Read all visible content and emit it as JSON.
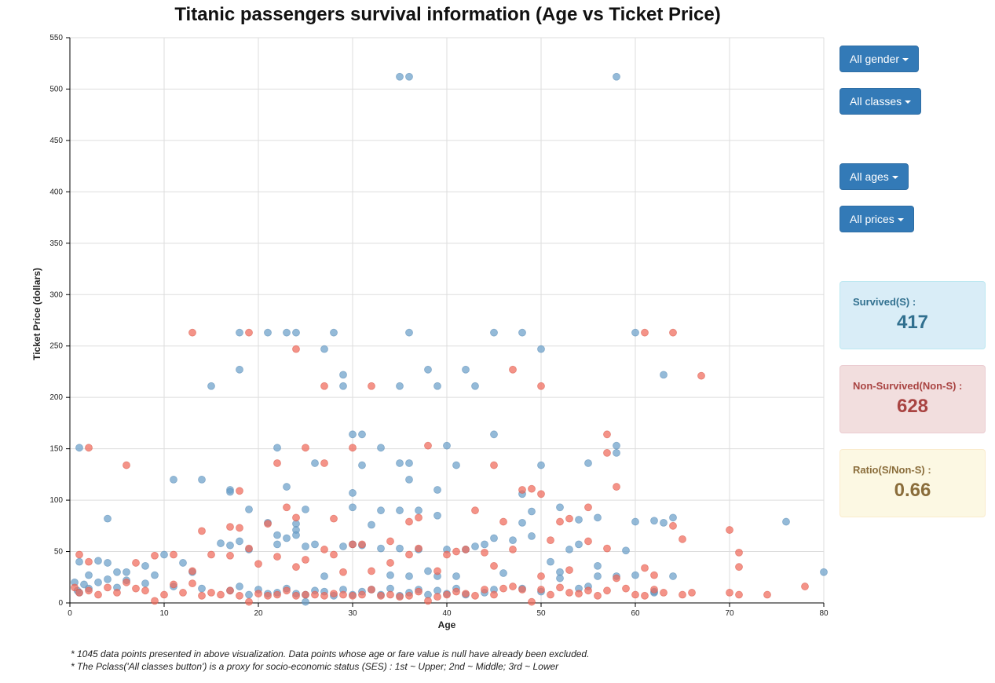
{
  "title": "Titanic passengers survival information (Age vs Ticket Price)",
  "filters": {
    "gender": "All gender",
    "classes": "All classes",
    "ages": "All ages",
    "prices": "All prices"
  },
  "stats": {
    "survived_label": "Survived(S) :",
    "survived_value": "417",
    "nonsurvived_label": "Non-Survived(Non-S) :",
    "nonsurvived_value": "628",
    "ratio_label": "Ratio(S/Non-S) :",
    "ratio_value": "0.66"
  },
  "notes": [
    "* 1045 data points presented in above visualization. Data points whose age or fare value is null have already been excluded.",
    "* The Pclass('All classes button') is a proxy for socio-economic status (SES) : 1st ~ Upper; 2nd ~ Middle; 3rd ~ Lower"
  ],
  "colors": {
    "survived": "#6b9fc9",
    "non_survived": "#f06a5a",
    "button": "#337ab7"
  },
  "chart_data": {
    "type": "scatter",
    "title": "Titanic passengers survival information (Age vs Ticket Price)",
    "xlabel": "Age",
    "ylabel": "Ticket Price (dollars)",
    "xlim": [
      0,
      80
    ],
    "ylim": [
      0,
      550
    ],
    "xticks": [
      0,
      10,
      20,
      30,
      40,
      50,
      60,
      70,
      80
    ],
    "yticks": [
      0,
      50,
      100,
      150,
      200,
      250,
      300,
      350,
      400,
      450,
      500,
      550
    ],
    "grid": true,
    "series": [
      {
        "key": "survived",
        "points": [
          [
            35,
            512
          ],
          [
            36,
            512
          ],
          [
            58,
            512
          ],
          [
            18,
            263
          ],
          [
            21,
            263
          ],
          [
            23,
            263
          ],
          [
            24,
            263
          ],
          [
            28,
            263
          ],
          [
            36,
            263
          ],
          [
            45,
            263
          ],
          [
            48,
            263
          ],
          [
            60,
            263
          ],
          [
            18,
            227
          ],
          [
            29,
            222
          ],
          [
            38,
            227
          ],
          [
            42,
            227
          ],
          [
            63,
            222
          ],
          [
            15,
            211
          ],
          [
            27,
            247
          ],
          [
            29,
            211
          ],
          [
            35,
            211
          ],
          [
            39,
            211
          ],
          [
            43,
            211
          ],
          [
            50,
            247
          ],
          [
            1,
            151
          ],
          [
            22,
            151
          ],
          [
            30,
            164
          ],
          [
            31,
            164
          ],
          [
            33,
            151
          ],
          [
            40,
            153
          ],
          [
            45,
            164
          ],
          [
            58,
            153
          ],
          [
            58,
            146
          ],
          [
            11,
            120
          ],
          [
            14,
            120
          ],
          [
            23,
            113
          ],
          [
            26,
            136
          ],
          [
            31,
            134
          ],
          [
            35,
            136
          ],
          [
            36,
            120
          ],
          [
            36,
            136
          ],
          [
            39,
            110
          ],
          [
            41,
            134
          ],
          [
            50,
            134
          ],
          [
            55,
            136
          ],
          [
            4,
            82
          ],
          [
            17,
            110
          ],
          [
            17,
            108
          ],
          [
            19,
            91
          ],
          [
            21,
            78
          ],
          [
            24,
            77
          ],
          [
            30,
            107
          ],
          [
            30,
            93
          ],
          [
            33,
            90
          ],
          [
            35,
            90
          ],
          [
            37,
            90
          ],
          [
            39,
            85
          ],
          [
            48,
            106
          ],
          [
            49,
            89
          ],
          [
            52,
            93
          ],
          [
            54,
            81
          ],
          [
            56,
            83
          ],
          [
            60,
            79
          ],
          [
            62,
            80
          ],
          [
            63,
            78
          ],
          [
            64,
            83
          ],
          [
            76,
            79
          ],
          [
            1,
            40
          ],
          [
            2,
            27
          ],
          [
            3,
            41
          ],
          [
            4,
            39
          ],
          [
            5,
            30
          ],
          [
            6,
            30
          ],
          [
            8,
            36
          ],
          [
            10,
            47
          ],
          [
            12,
            39
          ],
          [
            13,
            30
          ],
          [
            16,
            58
          ],
          [
            17,
            56
          ],
          [
            18,
            60
          ],
          [
            19,
            52
          ],
          [
            22,
            66
          ],
          [
            22,
            57
          ],
          [
            23,
            63
          ],
          [
            24,
            71
          ],
          [
            24,
            66
          ],
          [
            25,
            91
          ],
          [
            25,
            55
          ],
          [
            26,
            57
          ],
          [
            27,
            26
          ],
          [
            29,
            55
          ],
          [
            30,
            57
          ],
          [
            31,
            56
          ],
          [
            32,
            76
          ],
          [
            33,
            53
          ],
          [
            34,
            27
          ],
          [
            35,
            53
          ],
          [
            36,
            26
          ],
          [
            37,
            52
          ],
          [
            38,
            31
          ],
          [
            39,
            26
          ],
          [
            40,
            52
          ],
          [
            41,
            26
          ],
          [
            42,
            52
          ],
          [
            43,
            55
          ],
          [
            44,
            57
          ],
          [
            45,
            63
          ],
          [
            46,
            29
          ],
          [
            47,
            61
          ],
          [
            48,
            78
          ],
          [
            49,
            65
          ],
          [
            51,
            40
          ],
          [
            52,
            30
          ],
          [
            53,
            52
          ],
          [
            54,
            57
          ],
          [
            55,
            16
          ],
          [
            56,
            36
          ],
          [
            58,
            26
          ],
          [
            59,
            51
          ],
          [
            62,
            10
          ],
          [
            64,
            26
          ],
          [
            80,
            30
          ],
          [
            0.5,
            20
          ],
          [
            0.8,
            12
          ],
          [
            1,
            10
          ],
          [
            1.5,
            18
          ],
          [
            2,
            14
          ],
          [
            3,
            20
          ],
          [
            4,
            23
          ],
          [
            5,
            15
          ],
          [
            6,
            22
          ],
          [
            8,
            19
          ],
          [
            9,
            27
          ],
          [
            11,
            16
          ],
          [
            14,
            14
          ],
          [
            17,
            12
          ],
          [
            18,
            16
          ],
          [
            19,
            8
          ],
          [
            20,
            13
          ],
          [
            21,
            9
          ],
          [
            22,
            10
          ],
          [
            23,
            14
          ],
          [
            24,
            9
          ],
          [
            25,
            8
          ],
          [
            26,
            12
          ],
          [
            27,
            11
          ],
          [
            28,
            7
          ],
          [
            29,
            13
          ],
          [
            30,
            8
          ],
          [
            31,
            11
          ],
          [
            32,
            13
          ],
          [
            33,
            8
          ],
          [
            34,
            14
          ],
          [
            35,
            7
          ],
          [
            36,
            10
          ],
          [
            37,
            13
          ],
          [
            38,
            8
          ],
          [
            39,
            12
          ],
          [
            40,
            9
          ],
          [
            41,
            14
          ],
          [
            42,
            8
          ],
          [
            44,
            10
          ],
          [
            45,
            13
          ],
          [
            48,
            14
          ],
          [
            50,
            11
          ],
          [
            52,
            24
          ],
          [
            54,
            14
          ],
          [
            56,
            26
          ],
          [
            60,
            27
          ],
          [
            62,
            11
          ],
          [
            25,
            1
          ]
        ]
      },
      {
        "key": "non_survived",
        "points": [
          [
            13,
            263
          ],
          [
            19,
            263
          ],
          [
            61,
            263
          ],
          [
            64,
            263
          ],
          [
            24,
            247
          ],
          [
            27,
            211
          ],
          [
            32,
            211
          ],
          [
            47,
            227
          ],
          [
            50,
            211
          ],
          [
            67,
            221
          ],
          [
            2,
            151
          ],
          [
            25,
            151
          ],
          [
            30,
            151
          ],
          [
            38,
            153
          ],
          [
            57,
            164
          ],
          [
            57,
            146
          ],
          [
            6,
            134
          ],
          [
            22,
            136
          ],
          [
            27,
            136
          ],
          [
            45,
            134
          ],
          [
            58,
            113
          ],
          [
            18,
            109
          ],
          [
            14,
            70
          ],
          [
            17,
            74
          ],
          [
            18,
            73
          ],
          [
            21,
            77
          ],
          [
            23,
            93
          ],
          [
            24,
            83
          ],
          [
            28,
            82
          ],
          [
            31,
            57
          ],
          [
            34,
            60
          ],
          [
            36,
            79
          ],
          [
            37,
            83
          ],
          [
            43,
            90
          ],
          [
            46,
            79
          ],
          [
            48,
            110
          ],
          [
            49,
            111
          ],
          [
            50,
            106
          ],
          [
            52,
            79
          ],
          [
            53,
            82
          ],
          [
            55,
            93
          ],
          [
            64,
            75
          ],
          [
            65,
            62
          ],
          [
            70,
            71
          ],
          [
            71,
            49
          ],
          [
            71,
            35
          ],
          [
            1,
            47
          ],
          [
            2,
            40
          ],
          [
            7,
            39
          ],
          [
            9,
            46
          ],
          [
            11,
            47
          ],
          [
            13,
            31
          ],
          [
            15,
            47
          ],
          [
            17,
            46
          ],
          [
            19,
            53
          ],
          [
            20,
            38
          ],
          [
            22,
            45
          ],
          [
            24,
            35
          ],
          [
            25,
            42
          ],
          [
            27,
            52
          ],
          [
            28,
            47
          ],
          [
            29,
            30
          ],
          [
            30,
            57
          ],
          [
            32,
            31
          ],
          [
            34,
            39
          ],
          [
            36,
            47
          ],
          [
            37,
            53
          ],
          [
            39,
            31
          ],
          [
            40,
            47
          ],
          [
            41,
            50
          ],
          [
            42,
            52
          ],
          [
            44,
            49
          ],
          [
            45,
            36
          ],
          [
            47,
            52
          ],
          [
            50,
            26
          ],
          [
            51,
            61
          ],
          [
            53,
            32
          ],
          [
            55,
            60
          ],
          [
            57,
            53
          ],
          [
            61,
            34
          ],
          [
            62,
            27
          ],
          [
            0.5,
            15
          ],
          [
            1,
            10
          ],
          [
            2,
            12
          ],
          [
            3,
            8
          ],
          [
            4,
            15
          ],
          [
            5,
            10
          ],
          [
            6,
            20
          ],
          [
            7,
            14
          ],
          [
            8,
            12
          ],
          [
            9,
            2
          ],
          [
            10,
            8
          ],
          [
            11,
            18
          ],
          [
            12,
            10
          ],
          [
            13,
            19
          ],
          [
            14,
            7
          ],
          [
            15,
            10
          ],
          [
            16,
            8
          ],
          [
            17,
            12
          ],
          [
            18,
            7
          ],
          [
            19,
            1
          ],
          [
            20,
            9
          ],
          [
            21,
            7
          ],
          [
            22,
            8
          ],
          [
            23,
            12
          ],
          [
            24,
            7
          ],
          [
            25,
            8
          ],
          [
            26,
            8
          ],
          [
            27,
            7
          ],
          [
            28,
            9
          ],
          [
            29,
            8
          ],
          [
            30,
            7
          ],
          [
            31,
            8
          ],
          [
            32,
            13
          ],
          [
            33,
            7
          ],
          [
            34,
            8
          ],
          [
            35,
            6
          ],
          [
            36,
            7
          ],
          [
            37,
            11
          ],
          [
            38,
            2
          ],
          [
            39,
            6
          ],
          [
            40,
            8
          ],
          [
            41,
            11
          ],
          [
            42,
            9
          ],
          [
            43,
            7
          ],
          [
            44,
            13
          ],
          [
            45,
            8
          ],
          [
            46,
            14
          ],
          [
            47,
            16
          ],
          [
            48,
            13
          ],
          [
            49,
            1
          ],
          [
            50,
            13
          ],
          [
            51,
            8
          ],
          [
            52,
            15
          ],
          [
            53,
            10
          ],
          [
            54,
            9
          ],
          [
            55,
            12
          ],
          [
            56,
            7
          ],
          [
            57,
            12
          ],
          [
            58,
            24
          ],
          [
            59,
            14
          ],
          [
            60,
            8
          ],
          [
            61,
            7
          ],
          [
            62,
            13
          ],
          [
            63,
            10
          ],
          [
            65,
            8
          ],
          [
            66,
            10
          ],
          [
            70,
            10
          ],
          [
            71,
            8
          ],
          [
            74,
            8
          ],
          [
            78,
            16
          ]
        ]
      }
    ]
  }
}
